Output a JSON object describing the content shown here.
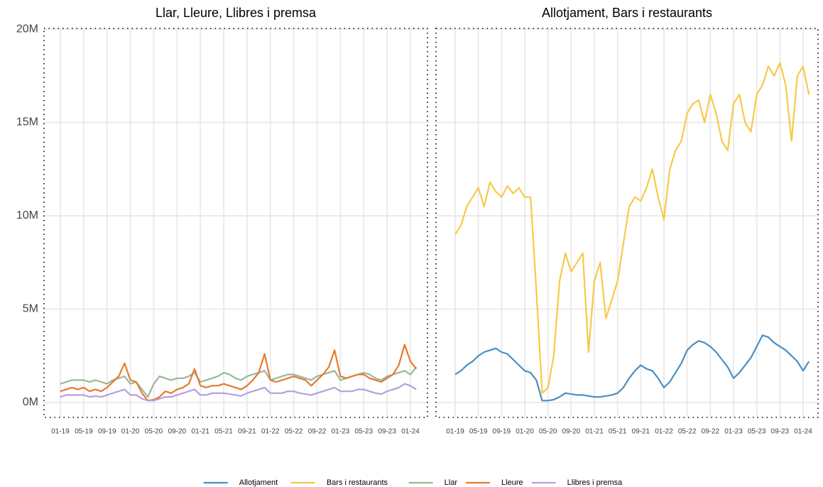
{
  "chart_data": [
    {
      "type": "line",
      "title": "Llar, Lleure, Llibres i premsa",
      "x": [
        "01-19",
        "02-19",
        "03-19",
        "04-19",
        "05-19",
        "06-19",
        "07-19",
        "08-19",
        "09-19",
        "10-19",
        "11-19",
        "12-19",
        "01-20",
        "02-20",
        "03-20",
        "04-20",
        "05-20",
        "06-20",
        "07-20",
        "08-20",
        "09-20",
        "10-20",
        "11-20",
        "12-20",
        "01-21",
        "02-21",
        "03-21",
        "04-21",
        "05-21",
        "06-21",
        "07-21",
        "08-21",
        "09-21",
        "10-21",
        "11-21",
        "12-21",
        "01-22",
        "02-22",
        "03-22",
        "04-22",
        "05-22",
        "06-22",
        "07-22",
        "08-22",
        "09-22",
        "10-22",
        "11-22",
        "12-22",
        "01-23",
        "02-23",
        "03-23",
        "04-23",
        "05-23",
        "06-23",
        "07-23",
        "08-23",
        "09-23",
        "10-23",
        "11-23",
        "12-23",
        "01-24",
        "02-24"
      ],
      "xticks": [
        "01-19",
        "05-19",
        "09-19",
        "01-20",
        "05-20",
        "09-20",
        "01-21",
        "05-21",
        "09-21",
        "01-22",
        "05-22",
        "09-22",
        "01-23",
        "05-23",
        "09-23",
        "01-24"
      ],
      "ylim": [
        -0.8,
        20.04
      ],
      "yticks": [
        {
          "value": 0,
          "label": "0M"
        },
        {
          "value": 5,
          "label": "5M"
        },
        {
          "value": 10,
          "label": "10M"
        },
        {
          "value": 15,
          "label": "15M"
        },
        {
          "value": 20,
          "label": "20M"
        }
      ],
      "grid": true,
      "series": [
        {
          "name": "Llar",
          "color": "#98b89a",
          "values": [
            1.0,
            1.1,
            1.2,
            1.2,
            1.2,
            1.1,
            1.2,
            1.1,
            1.0,
            1.2,
            1.3,
            1.4,
            1.0,
            1.1,
            0.7,
            0.3,
            1.0,
            1.4,
            1.3,
            1.2,
            1.3,
            1.3,
            1.4,
            1.6,
            1.1,
            1.2,
            1.3,
            1.4,
            1.6,
            1.5,
            1.3,
            1.2,
            1.4,
            1.5,
            1.6,
            1.7,
            1.2,
            1.3,
            1.4,
            1.5,
            1.5,
            1.4,
            1.3,
            1.2,
            1.4,
            1.5,
            1.6,
            1.7,
            1.2,
            1.3,
            1.4,
            1.5,
            1.6,
            1.5,
            1.3,
            1.2,
            1.4,
            1.5,
            1.6,
            1.7,
            1.5,
            1.9
          ]
        },
        {
          "name": "Lleure",
          "color": "#e57a30",
          "values": [
            0.6,
            0.7,
            0.8,
            0.7,
            0.8,
            0.6,
            0.7,
            0.6,
            0.8,
            1.1,
            1.4,
            2.1,
            1.2,
            1.1,
            0.5,
            0.1,
            0.15,
            0.3,
            0.6,
            0.5,
            0.7,
            0.8,
            1.0,
            1.8,
            0.9,
            0.8,
            0.9,
            0.9,
            1.0,
            0.9,
            0.8,
            0.7,
            0.9,
            1.2,
            1.6,
            2.6,
            1.2,
            1.1,
            1.2,
            1.3,
            1.4,
            1.3,
            1.2,
            0.9,
            1.2,
            1.5,
            1.9,
            2.8,
            1.4,
            1.3,
            1.4,
            1.5,
            1.5,
            1.3,
            1.2,
            1.1,
            1.3,
            1.5,
            2.0,
            3.1,
            2.2,
            1.8
          ]
        },
        {
          "name": "Llibres i premsa",
          "color": "#b89ede",
          "values": [
            0.3,
            0.4,
            0.4,
            0.4,
            0.4,
            0.3,
            0.35,
            0.3,
            0.4,
            0.5,
            0.6,
            0.7,
            0.4,
            0.4,
            0.2,
            0.1,
            0.1,
            0.2,
            0.3,
            0.3,
            0.4,
            0.5,
            0.6,
            0.7,
            0.4,
            0.4,
            0.5,
            0.5,
            0.5,
            0.45,
            0.4,
            0.35,
            0.5,
            0.6,
            0.7,
            0.8,
            0.5,
            0.5,
            0.5,
            0.6,
            0.6,
            0.5,
            0.45,
            0.4,
            0.5,
            0.6,
            0.7,
            0.8,
            0.6,
            0.6,
            0.6,
            0.7,
            0.7,
            0.6,
            0.5,
            0.45,
            0.6,
            0.7,
            0.8,
            1.0,
            0.9,
            0.7
          ]
        }
      ]
    },
    {
      "type": "line",
      "title": "Allotjament, Bars i restaurants",
      "x": [
        "01-19",
        "02-19",
        "03-19",
        "04-19",
        "05-19",
        "06-19",
        "07-19",
        "08-19",
        "09-19",
        "10-19",
        "11-19",
        "12-19",
        "01-20",
        "02-20",
        "03-20",
        "04-20",
        "05-20",
        "06-20",
        "07-20",
        "08-20",
        "09-20",
        "10-20",
        "11-20",
        "12-20",
        "01-21",
        "02-21",
        "03-21",
        "04-21",
        "05-21",
        "06-21",
        "07-21",
        "08-21",
        "09-21",
        "10-21",
        "11-21",
        "12-21",
        "01-22",
        "02-22",
        "03-22",
        "04-22",
        "05-22",
        "06-22",
        "07-22",
        "08-22",
        "09-22",
        "10-22",
        "11-22",
        "12-22",
        "01-23",
        "02-23",
        "03-23",
        "04-23",
        "05-23",
        "06-23",
        "07-23",
        "08-23",
        "09-23",
        "10-23",
        "11-23",
        "12-23",
        "01-24",
        "02-24"
      ],
      "xticks": [
        "01-19",
        "05-19",
        "09-19",
        "01-20",
        "05-20",
        "09-20",
        "01-21",
        "05-21",
        "09-21",
        "01-22",
        "05-22",
        "09-22",
        "01-23",
        "05-23",
        "09-23",
        "01-24"
      ],
      "ylim": [
        -0.8,
        20.04
      ],
      "yticks": [
        {
          "value": 0,
          "label": "0M"
        },
        {
          "value": 5,
          "label": "5M"
        },
        {
          "value": 10,
          "label": "10M"
        },
        {
          "value": 15,
          "label": "15M"
        },
        {
          "value": 20,
          "label": "20M"
        }
      ],
      "grid": true,
      "series": [
        {
          "name": "Allotjament",
          "color": "#4a8fc4",
          "values": [
            1.5,
            1.7,
            2.0,
            2.2,
            2.5,
            2.7,
            2.8,
            2.9,
            2.7,
            2.6,
            2.3,
            2.0,
            1.7,
            1.6,
            1.2,
            0.1,
            0.1,
            0.15,
            0.3,
            0.5,
            0.45,
            0.4,
            0.4,
            0.35,
            0.3,
            0.3,
            0.35,
            0.4,
            0.5,
            0.8,
            1.3,
            1.7,
            2.0,
            1.8,
            1.7,
            1.3,
            0.8,
            1.1,
            1.6,
            2.1,
            2.8,
            3.1,
            3.3,
            3.2,
            3.0,
            2.7,
            2.3,
            1.9,
            1.3,
            1.6,
            2.0,
            2.4,
            3.0,
            3.6,
            3.5,
            3.2,
            3.0,
            2.8,
            2.5,
            2.2,
            1.7,
            2.2
          ]
        },
        {
          "name": "Bars i restaurants",
          "color": "#f7c948",
          "values": [
            9.0,
            9.5,
            10.5,
            11.0,
            11.5,
            10.5,
            11.8,
            11.3,
            11.0,
            11.6,
            11.2,
            11.5,
            11.0,
            11.0,
            6.0,
            0.5,
            0.8,
            2.5,
            6.5,
            8.0,
            7.0,
            7.5,
            8.0,
            2.7,
            6.5,
            7.5,
            4.5,
            5.5,
            6.5,
            8.5,
            10.5,
            11.0,
            10.8,
            11.5,
            12.5,
            11.0,
            9.8,
            12.5,
            13.5,
            14.0,
            15.5,
            16.0,
            16.2,
            15.0,
            16.5,
            15.5,
            14.0,
            13.5,
            16.0,
            16.5,
            15.0,
            14.5,
            16.5,
            17.0,
            18.0,
            17.5,
            18.2,
            17.0,
            14.0,
            17.5,
            18.0,
            16.5
          ]
        }
      ]
    }
  ]
}
